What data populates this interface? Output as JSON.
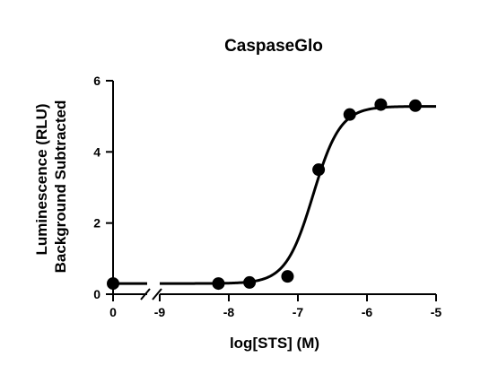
{
  "chart_data": {
    "type": "scatter",
    "title": "CaspaseGlo",
    "xlabel": "log[STS] (M)",
    "ylabel": [
      "Luminescence (RLU)",
      "Background Subtracted"
    ],
    "axis_break": {
      "first_tick": "0",
      "main_ticks": [
        "-9",
        "-8",
        "-7",
        "-6",
        "-5"
      ]
    },
    "xlim": [
      -9,
      -5
    ],
    "ylim": [
      0,
      6
    ],
    "yticks": [
      "0",
      "2",
      "4",
      "6"
    ],
    "grid": false,
    "control_point": {
      "x": "0",
      "y": 0.3
    },
    "points": [
      {
        "x": -8.15,
        "y": 0.3
      },
      {
        "x": -7.7,
        "y": 0.33
      },
      {
        "x": -7.15,
        "y": 0.5
      },
      {
        "x": -6.7,
        "y": 3.5
      },
      {
        "x": -6.25,
        "y": 5.05
      },
      {
        "x": -5.8,
        "y": 5.33
      },
      {
        "x": -5.3,
        "y": 5.3
      }
    ],
    "fit": {
      "model": "sigmoidal dose-response",
      "bottom": 0.3,
      "top": 5.28,
      "logEC50": -6.78,
      "hill": 2.2
    }
  }
}
